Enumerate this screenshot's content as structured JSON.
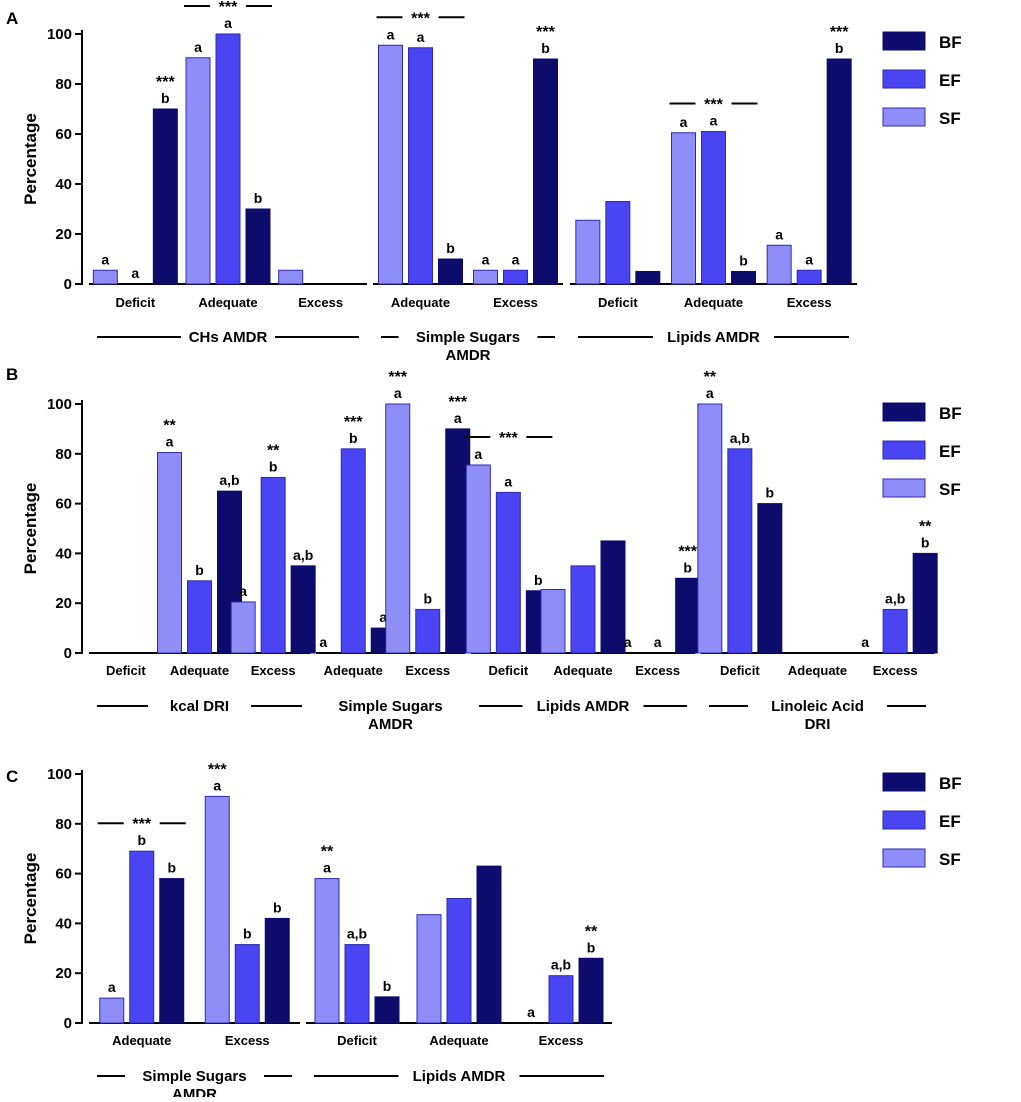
{
  "colors": {
    "BF": "#0d0b6b",
    "EF": "#4a44f2",
    "SF": "#8f8df7"
  },
  "chart_data": [
    {
      "type": "bar",
      "panel": "A",
      "ylabel": "Percentage",
      "ylim": [
        0,
        100
      ],
      "yticks": [
        0,
        20,
        40,
        60,
        80,
        100
      ],
      "legend": [
        "BF",
        "EF",
        "SF"
      ],
      "series_order": [
        "SF",
        "EF",
        "BF"
      ],
      "groups": [
        {
          "label_lines": [
            "CHs AMDR"
          ],
          "categories": [
            {
              "name": "Deficit",
              "values": {
                "SF": 5.5,
                "EF": 0,
                "BF": 70
              },
              "letters": {
                "SF": "a",
                "EF": "a",
                "BF": "b"
              },
              "stars": {
                "BF": "***"
              }
            },
            {
              "name": "Adequate",
              "values": {
                "SF": 90.5,
                "EF": 100,
                "BF": 30
              },
              "letters": {
                "SF": "a",
                "EF": "a",
                "BF": "b"
              },
              "bracket": "***"
            },
            {
              "name": "Excess",
              "values": {
                "SF": 5.5,
                "EF": 0,
                "BF": 0
              }
            }
          ]
        },
        {
          "label_lines": [
            "Simple Sugars",
            "AMDR"
          ],
          "categories": [
            {
              "name": "Adequate",
              "values": {
                "SF": 95.5,
                "EF": 94.5,
                "BF": 10
              },
              "letters": {
                "SF": "a",
                "EF": "a",
                "BF": "b"
              },
              "bracket": "***"
            },
            {
              "name": "Excess",
              "values": {
                "SF": 5.5,
                "EF": 5.5,
                "BF": 90
              },
              "letters": {
                "SF": "a",
                "EF": "a",
                "BF": "b"
              },
              "stars": {
                "BF": "***"
              }
            }
          ]
        },
        {
          "label_lines": [
            "Lipids AMDR"
          ],
          "categories": [
            {
              "name": "Deficit",
              "values": {
                "SF": 25.5,
                "EF": 33,
                "BF": 5
              }
            },
            {
              "name": "Adequate",
              "values": {
                "SF": 60.5,
                "EF": 61,
                "BF": 5
              },
              "letters": {
                "SF": "a",
                "EF": "a",
                "BF": "b"
              },
              "bracket": "***"
            },
            {
              "name": "Excess",
              "values": {
                "SF": 15.5,
                "EF": 5.5,
                "BF": 90
              },
              "letters": {
                "SF": "a",
                "EF": "a",
                "BF": "b"
              },
              "stars": {
                "BF": "***"
              }
            }
          ]
        }
      ]
    },
    {
      "type": "bar",
      "panel": "B",
      "ylabel": "Percentage",
      "ylim": [
        0,
        100
      ],
      "yticks": [
        0,
        20,
        40,
        60,
        80,
        100
      ],
      "legend": [
        "BF",
        "EF",
        "SF"
      ],
      "series_order": [
        "SF",
        "EF",
        "BF"
      ],
      "groups": [
        {
          "label_lines": [
            "kcal  DRI"
          ],
          "categories": [
            {
              "name": "Deficit",
              "values": {
                "SF": 0,
                "EF": 0,
                "BF": 0
              }
            },
            {
              "name": "Adequate",
              "values": {
                "SF": 80.5,
                "EF": 29,
                "BF": 65
              },
              "letters": {
                "SF": "a",
                "EF": "b",
                "BF": "a,b"
              },
              "stars": {
                "SF": "**"
              }
            },
            {
              "name": "Excess",
              "values": {
                "SF": 20.5,
                "EF": 70.5,
                "BF": 35
              },
              "letters": {
                "SF": "a",
                "EF": "b",
                "BF": "a,b"
              },
              "stars": {
                "EF": "**"
              }
            }
          ]
        },
        {
          "label_lines": [
            "Simple Sugars",
            "AMDR"
          ],
          "categories": [
            {
              "name": "Adequate",
              "values": {
                "SF": 0,
                "EF": 82,
                "BF": 10
              },
              "letters": {
                "SF": "a",
                "EF": "b",
                "BF": "a"
              },
              "stars": {
                "EF": "***"
              }
            },
            {
              "name": "Excess",
              "values": {
                "SF": 100,
                "EF": 17.5,
                "BF": 90
              },
              "letters": {
                "SF": "a",
                "EF": "b",
                "BF": "a"
              },
              "stars": {
                "SF": "***",
                "BF": "***"
              }
            }
          ]
        },
        {
          "label_lines": [
            "Lipids AMDR"
          ],
          "categories": [
            {
              "name": "Deficit",
              "values": {
                "SF": 75.5,
                "EF": 64.5,
                "BF": 25
              },
              "letters": {
                "SF": "a",
                "EF": "a",
                "BF": "b"
              },
              "bracket": "***"
            },
            {
              "name": "Adequate",
              "values": {
                "SF": 25.5,
                "EF": 35,
                "BF": 45
              }
            },
            {
              "name": "Excess",
              "values": {
                "SF": 0,
                "EF": 0,
                "BF": 30
              },
              "letters": {
                "SF": "a",
                "EF": "a",
                "BF": "b"
              },
              "stars": {
                "BF": "***"
              }
            }
          ]
        },
        {
          "label_lines": [
            "Linoleic Acid",
            "DRI"
          ],
          "categories": [
            {
              "name": "Deficit",
              "values": {
                "SF": 100,
                "EF": 82,
                "BF": 60
              },
              "letters": {
                "SF": "a",
                "EF": "a,b",
                "BF": "b"
              },
              "stars": {
                "SF": "**"
              }
            },
            {
              "name": "Adequate",
              "values": {
                "SF": 0,
                "EF": 0,
                "BF": 0
              }
            },
            {
              "name": "Excess",
              "values": {
                "SF": 0,
                "EF": 17.5,
                "BF": 40
              },
              "letters": {
                "SF": "a",
                "EF": "a,b",
                "BF": "b"
              },
              "stars": {
                "BF": "**"
              }
            }
          ]
        }
      ]
    },
    {
      "type": "bar",
      "panel": "C",
      "ylabel": "Percentage",
      "ylim": [
        0,
        100
      ],
      "yticks": [
        0,
        20,
        40,
        60,
        80,
        100
      ],
      "legend": [
        "BF",
        "EF",
        "SF"
      ],
      "series_order": [
        "SF",
        "EF",
        "BF"
      ],
      "groups": [
        {
          "label_lines": [
            "Simple Sugars",
            "AMDR"
          ],
          "categories": [
            {
              "name": "Adequate",
              "values": {
                "SF": 10,
                "EF": 69,
                "BF": 58
              },
              "letters": {
                "SF": "a",
                "EF": "b",
                "BF": "b"
              },
              "bracket": "***"
            },
            {
              "name": "Excess",
              "values": {
                "SF": 91,
                "EF": 31.5,
                "BF": 42
              },
              "letters": {
                "SF": "a",
                "EF": "b",
                "BF": "b"
              },
              "stars": {
                "SF": "***"
              }
            }
          ]
        },
        {
          "label_lines": [
            "Lipids AMDR"
          ],
          "categories": [
            {
              "name": "Deficit",
              "values": {
                "SF": 58,
                "EF": 31.5,
                "BF": 10.5
              },
              "letters": {
                "SF": "a",
                "EF": "a,b",
                "BF": "b"
              },
              "stars": {
                "SF": "**"
              }
            },
            {
              "name": "Adequate",
              "values": {
                "SF": 43.5,
                "EF": 50,
                "BF": 63
              }
            },
            {
              "name": "Excess",
              "values": {
                "SF": 0,
                "EF": 19,
                "BF": 26
              },
              "letters": {
                "SF": "a",
                "EF": "a,b",
                "BF": "b"
              },
              "stars": {
                "BF": "**"
              }
            }
          ]
        }
      ]
    }
  ]
}
